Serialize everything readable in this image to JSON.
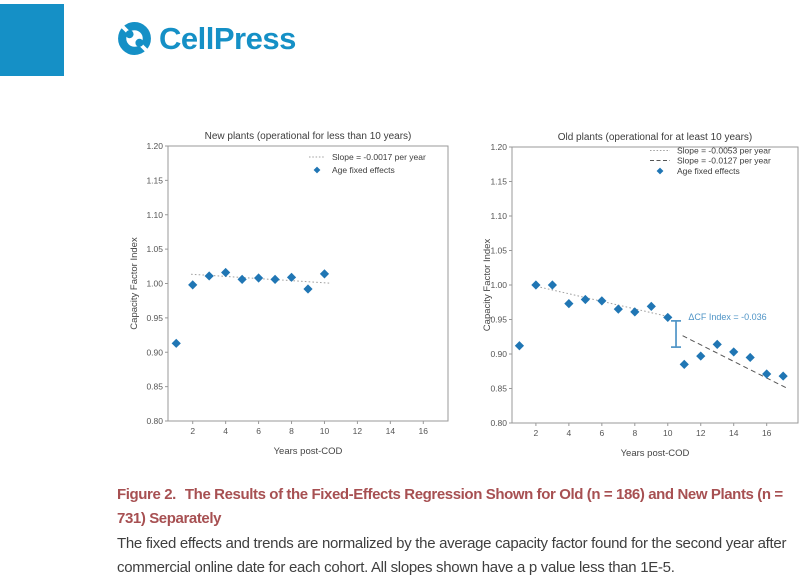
{
  "logo": {
    "text": "CellPress"
  },
  "colors": {
    "brand_teal": "#1590c6",
    "marker_blue": "#2076b4",
    "annotation_blue": "#4f94c6",
    "dotted_gray": "#a0a0a0",
    "dashed_dark": "#555555",
    "spine_gray": "#999999",
    "caption_red": "#a75052",
    "body_text": "#3f3f3f"
  },
  "chart_data": [
    {
      "type": "scatter",
      "title": "New plants (operational for less than 10 years)",
      "xlabel": "Years post-COD",
      "ylabel": "Capacity Factor Index",
      "xlim": [
        0.5,
        17.5
      ],
      "ylim": [
        0.8,
        1.2
      ],
      "xticks": [
        2,
        4,
        6,
        8,
        10,
        12,
        14,
        16
      ],
      "yticks": [
        "0.80",
        "0.85",
        "0.90",
        "0.95",
        "1.00",
        "1.05",
        "1.10",
        "1.15",
        "1.20"
      ],
      "grid": false,
      "legend_position": "upper right",
      "series": [
        {
          "name": "Age fixed effects",
          "x": [
            1,
            2,
            3,
            4,
            5,
            6,
            7,
            8,
            9,
            10
          ],
          "y": [
            0.913,
            0.998,
            1.011,
            1.016,
            1.006,
            1.008,
            1.006,
            1.009,
            0.992,
            1.014
          ]
        }
      ],
      "trend_lines": [
        {
          "label": "Slope = -0.0017 per year",
          "style": "dotted",
          "x1": 1.9,
          "y1": 1.0135,
          "x2": 10.35,
          "y2": 1.0005
        }
      ],
      "legend": [
        {
          "marker": "dotted-line",
          "label": "Slope = -0.0017 per year"
        },
        {
          "marker": "diamond",
          "label": "Age fixed effects"
        }
      ]
    },
    {
      "type": "scatter",
      "title": "Old plants (operational for at least 10 years)",
      "xlabel": "Years post-COD",
      "ylabel": "Capacity Factor Index",
      "xlim": [
        0.55,
        17.9
      ],
      "ylim": [
        0.8,
        1.2
      ],
      "xticks": [
        2,
        4,
        6,
        8,
        10,
        12,
        14,
        16
      ],
      "yticks": [
        "0.80",
        "0.85",
        "0.90",
        "0.95",
        "1.00",
        "1.05",
        "1.10",
        "1.15",
        "1.20"
      ],
      "grid": false,
      "legend_position": "upper right",
      "series": [
        {
          "name": "Age fixed effects",
          "x": [
            1,
            2,
            3,
            4,
            5,
            6,
            7,
            8,
            9,
            10,
            11,
            12,
            13,
            14,
            15,
            16,
            17
          ],
          "y": [
            0.912,
            1.0,
            1.0,
            0.973,
            0.979,
            0.977,
            0.965,
            0.961,
            0.969,
            0.953,
            0.885,
            0.897,
            0.914,
            0.903,
            0.895,
            0.871,
            0.868
          ]
        }
      ],
      "trend_lines": [
        {
          "label": "Slope = -0.0053 per year",
          "style": "dotted",
          "x1": 2.05,
          "y1": 0.998,
          "x2": 10.35,
          "y2": 0.9525
        },
        {
          "label": "Slope = -0.0127 per year",
          "style": "dashed",
          "x1": 10.9,
          "y1": 0.9265,
          "x2": 17.35,
          "y2": 0.849
        }
      ],
      "legend": [
        {
          "marker": "dotted-line",
          "label": "Slope = -0.0053 per year"
        },
        {
          "marker": "dashed-line",
          "label": "Slope = -0.0127 per year"
        },
        {
          "marker": "diamond",
          "label": "Age fixed effects"
        }
      ],
      "error_bar": {
        "x": 10.5,
        "top": 0.948,
        "bottom": 0.91
      },
      "annotation": {
        "text": "ΔCF Index = -0.036",
        "x": 11.25,
        "y": 0.9495
      }
    }
  ],
  "caption": {
    "label": "Figure 2.",
    "title": "The Results of the Fixed-Effects Regression Shown for Old (n = 186) and New Plants (n = 731) Separately",
    "body": "The fixed effects and trends are normalized by the average capacity factor found for the second year after commercial online date for each cohort. All slopes shown have a p value less than 1E-5."
  }
}
